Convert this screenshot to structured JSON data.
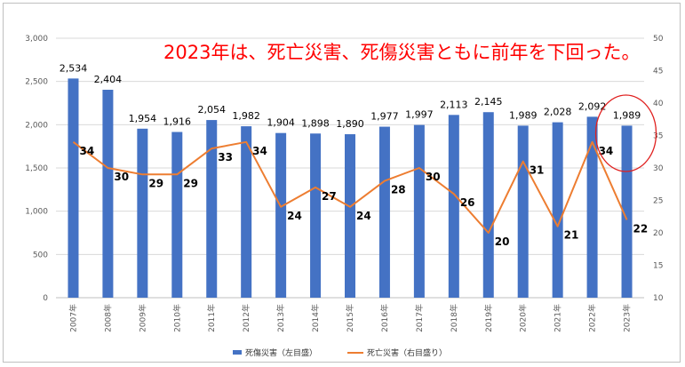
{
  "headline": "2023年は、死亡災害、死傷災害ともに前年を下回った。",
  "colors": {
    "bar": "#4472c4",
    "line": "#ed7d31",
    "highlight": "#e0201f",
    "headline": "#ff0000"
  },
  "chart_data": {
    "type": "bar+line",
    "title": "",
    "categories": [
      "2007年",
      "2008年",
      "2009年",
      "2010年",
      "2011年",
      "2012年",
      "2013年",
      "2014年",
      "2015年",
      "2016年",
      "2017年",
      "2018年",
      "2019年",
      "2020年",
      "2021年",
      "2022年",
      "2023年"
    ],
    "series": [
      {
        "name": "死傷災害（左目盛）",
        "type": "bar",
        "axis": "left",
        "values": [
          2534,
          2404,
          1954,
          1916,
          2054,
          1982,
          1904,
          1898,
          1890,
          1977,
          1997,
          2113,
          2145,
          1989,
          2028,
          2092,
          1989
        ],
        "labels": [
          "2,534",
          "2,404",
          "1,954",
          "1,916",
          "2,054",
          "1,982",
          "1,904",
          "1,898",
          "1,890",
          "1,977",
          "1,997",
          "2,113",
          "2,145",
          "1,989",
          "2,028",
          "2,092",
          "1,989"
        ]
      },
      {
        "name": "死亡災害（右目盛り）",
        "type": "line",
        "axis": "right",
        "values": [
          34,
          30,
          29,
          29,
          33,
          34,
          24,
          27,
          24,
          28,
          30,
          26,
          20,
          31,
          21,
          34,
          22
        ]
      }
    ],
    "y_left": {
      "range": [
        0,
        3000
      ],
      "ticks": [
        0,
        500,
        1000,
        1500,
        2000,
        2500,
        3000
      ],
      "tick_labels": [
        "0",
        "500",
        "1,000",
        "1,500",
        "2,000",
        "2,500",
        "3,000"
      ]
    },
    "y_right": {
      "range": [
        10,
        50
      ],
      "ticks": [
        10,
        15,
        20,
        25,
        30,
        35,
        40,
        45,
        50
      ],
      "tick_labels": [
        "10",
        "15",
        "20",
        "25",
        "30",
        "35",
        "40",
        "45",
        "50"
      ]
    },
    "grid": true,
    "legend_position": "bottom",
    "highlight_category": "2023年"
  }
}
